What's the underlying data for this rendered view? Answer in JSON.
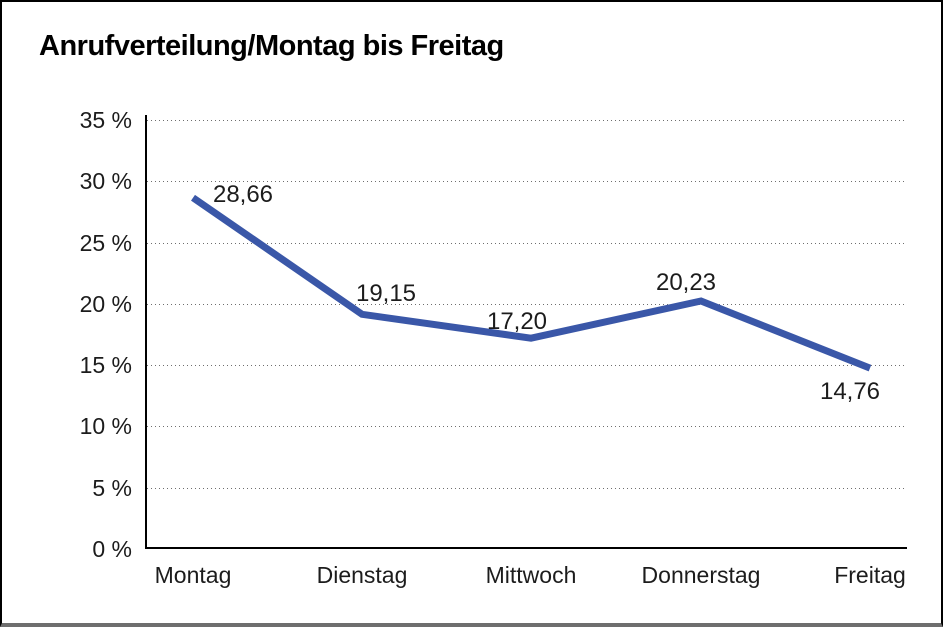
{
  "window": {
    "background": "#ffffff",
    "frame_border_color": "#000000",
    "frame_bottom_edge_color": "#6e6e6e"
  },
  "chart_data": {
    "type": "line",
    "title": "Anrufverteilung/Montag bis Freitag",
    "categories": [
      "Montag",
      "Dienstag",
      "Mittwoch",
      "Donnerstag",
      "Freitag"
    ],
    "series": [
      {
        "values": [
          28.66,
          19.15,
          17.2,
          20.23,
          14.76
        ],
        "point_labels": [
          "28,66",
          "19,15",
          "17,20",
          "20,23",
          "14,76"
        ],
        "color": "#3a57a8"
      }
    ],
    "xlabel": "",
    "ylabel": "",
    "ylim": [
      0,
      35
    ],
    "y_tick_values": [
      35,
      30,
      25,
      20,
      15,
      10,
      5,
      0
    ],
    "y_tick_labels": [
      "35 %",
      "30 %",
      "25 %",
      "20 %",
      "15 %",
      "10 %",
      "5 %",
      "0 %"
    ],
    "decimal_separator": ",",
    "grid": "horizontal-dotted",
    "grid_color": "#6e6e6e",
    "axis_color": "#000000",
    "legend_position": "none"
  }
}
